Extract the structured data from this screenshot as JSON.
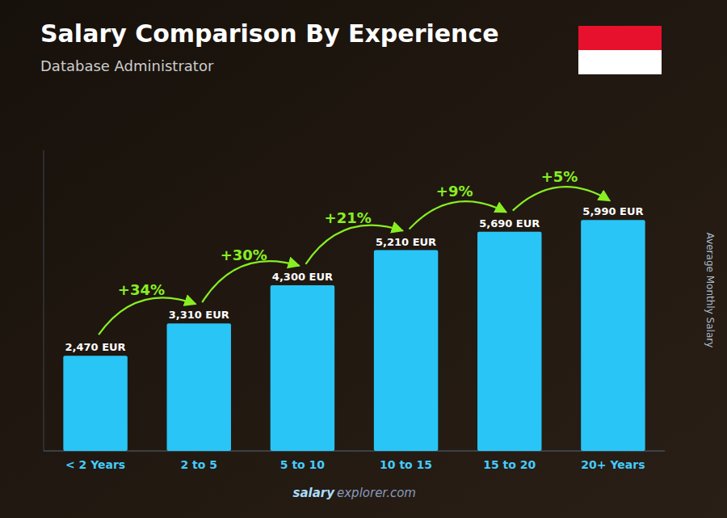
{
  "chart_data": {
    "type": "bar",
    "title": "Salary Comparison By Experience",
    "subtitle": "Database Administrator",
    "y_label": "Average Monthly Salary",
    "categories": [
      "< 2 Years",
      "2 to 5",
      "5 to 10",
      "10 to 15",
      "15 to 20",
      "20+ Years"
    ],
    "values": [
      2470,
      3310,
      4300,
      5210,
      5690,
      5990
    ],
    "value_labels": [
      "2,470 EUR",
      "3,310 EUR",
      "4,300 EUR",
      "5,210 EUR",
      "5,690 EUR",
      "5,990 EUR"
    ],
    "annotations": [
      null,
      "+34%",
      "+30%",
      "+21%",
      "+9%",
      "+5%"
    ],
    "watermark": [
      "salary",
      "explorer.com"
    ],
    "color": "#29c5f6",
    "ylim": [
      0,
      7800
    ],
    "grid": false,
    "data_labels": true,
    "tick_labels": "x"
  }
}
